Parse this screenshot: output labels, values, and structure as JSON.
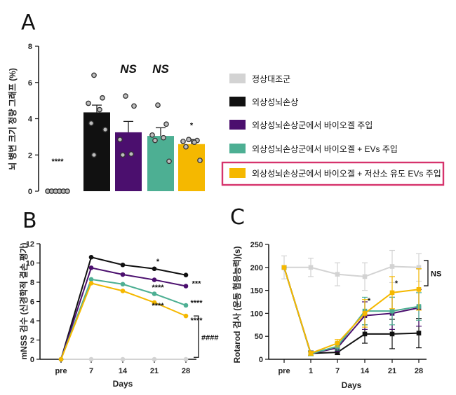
{
  "panels": {
    "a": "A",
    "b": "B",
    "c": "C"
  },
  "legend": [
    {
      "label": "정상대조군",
      "color": "#d3d3d3"
    },
    {
      "label": "외상성뇌손상",
      "color": "#111111"
    },
    {
      "label": "외상성뇌손상군에서 바이오겔 주입",
      "color": "#4b0f6e"
    },
    {
      "label": "외상성뇌손상군에서 바이오겔 + EVs 주입",
      "color": "#4daf93"
    },
    {
      "label": "외상성뇌손상군에서 바이오겔 + 저산소 유도 EVs 주입",
      "color": "#f5b800"
    }
  ],
  "highlight_color": "#d6336c",
  "chart_data": [
    {
      "type": "bar",
      "panel": "A",
      "ylabel": "뇌 병변 크기 정량 그래프 (%)",
      "ylim": [
        0,
        8
      ],
      "yticks": [
        0,
        2,
        4,
        6,
        8
      ],
      "categories": [
        "정상대조군",
        "외상성뇌손상",
        "외상성뇌손상군에서 바이오겔 주입",
        "외상성뇌손상군에서 바이오겔 + EVs 주입",
        "외상성뇌손상군에서 바이오겔 + 저산소 유도 EVs 주입"
      ],
      "values": [
        0,
        4.35,
        3.25,
        3.05,
        2.6
      ],
      "errors": [
        0,
        0.4,
        0.6,
        0.45,
        0.25
      ],
      "points": [
        [
          0,
          0,
          0,
          0,
          0,
          0
        ],
        [
          6.4,
          5.15,
          4.85,
          4.5,
          3.75,
          3.4,
          2.0
        ],
        [
          5.25,
          4.7,
          2.85,
          2.05,
          2.0
        ],
        [
          4.75,
          3.7,
          3.1,
          2.95,
          2.8,
          1.65
        ],
        [
          2.85,
          2.8,
          2.75,
          2.7,
          2.45,
          1.7
        ]
      ],
      "annotations": [
        "****",
        "",
        "NS",
        "NS",
        "*"
      ],
      "colors": [
        "#d3d3d3",
        "#111111",
        "#4b0f6e",
        "#4daf93",
        "#f5b800"
      ]
    },
    {
      "type": "line",
      "panel": "B",
      "ylabel": "mNSS 검수 (신경학적 결손 평가)",
      "xlabel": "Days",
      "x": [
        "pre",
        "7",
        "14",
        "21",
        "28"
      ],
      "ylim": [
        0,
        12
      ],
      "yticks": [
        0,
        2,
        4,
        6,
        8,
        10,
        12
      ],
      "series": [
        {
          "color": "#d3d3d3",
          "values": [
            0,
            0,
            0,
            0,
            0
          ]
        },
        {
          "color": "#111111",
          "values": [
            0,
            10.6,
            9.8,
            9.4,
            8.75
          ]
        },
        {
          "color": "#4b0f6e",
          "values": [
            0,
            9.5,
            8.8,
            8.25,
            7.6
          ]
        },
        {
          "color": "#4daf93",
          "values": [
            0,
            8.3,
            7.8,
            6.8,
            5.6
          ]
        },
        {
          "color": "#f5b800",
          "values": [
            0,
            7.9,
            7.1,
            5.9,
            4.5
          ]
        }
      ],
      "annotations": [
        {
          "x": "21",
          "y": 9.9,
          "text": "*"
        },
        {
          "x": "28",
          "y": 7.6,
          "text": "***"
        },
        {
          "x": "21",
          "y": 7.2,
          "text": "****"
        },
        {
          "x": "28",
          "y": 5.6,
          "text": "****"
        },
        {
          "x": "21",
          "y": 5.3,
          "text": "****"
        },
        {
          "x": "28",
          "y": 3.8,
          "text": "****"
        }
      ],
      "bracket_label": "####"
    },
    {
      "type": "line",
      "panel": "C",
      "ylabel": "Rotarod 검사 (운동 협응능력)(s)",
      "xlabel": "Days",
      "x": [
        "pre",
        "1",
        "7",
        "14",
        "21",
        "28"
      ],
      "ylim": [
        0,
        250
      ],
      "yticks": [
        0,
        50,
        100,
        150,
        200,
        250
      ],
      "series": [
        {
          "color": "#d3d3d3",
          "values": [
            200,
            200,
            185,
            180,
            202,
            200
          ],
          "errors": [
            25,
            20,
            25,
            30,
            35,
            30
          ]
        },
        {
          "color": "#111111",
          "values": [
            200,
            13,
            15,
            55,
            55,
            57
          ],
          "errors": [
            0,
            5,
            5,
            20,
            32,
            32
          ]
        },
        {
          "color": "#4b0f6e",
          "values": [
            200,
            12,
            25,
            95,
            100,
            112
          ],
          "errors": [
            0,
            4,
            8,
            30,
            35,
            40
          ]
        },
        {
          "color": "#4daf93",
          "values": [
            200,
            12,
            28,
            105,
            105,
            115
          ],
          "errors": [
            0,
            4,
            8,
            30,
            30,
            30
          ]
        },
        {
          "color": "#f5b800",
          "values": [
            200,
            13,
            35,
            100,
            145,
            152
          ],
          "errors": [
            0,
            4,
            8,
            30,
            35,
            45
          ]
        }
      ],
      "annotations": [
        {
          "x": "14",
          "y": 122,
          "text": "*"
        },
        {
          "x": "21",
          "y": 160,
          "text": "*"
        }
      ],
      "bracket_label": "NS"
    }
  ]
}
